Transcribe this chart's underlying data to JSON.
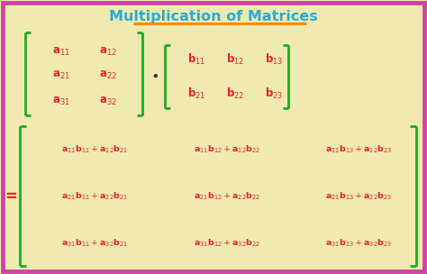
{
  "title": "Multiplication of Matrices",
  "title_color": "#29ABD4",
  "title_underline_color": "#FF8800",
  "bg_color": "#F0EAB0",
  "border_color": "#CC44AA",
  "bracket_color": "#22AA22",
  "red_color": "#EE2222",
  "figsize": [
    4.74,
    3.04
  ],
  "dpi": 100
}
